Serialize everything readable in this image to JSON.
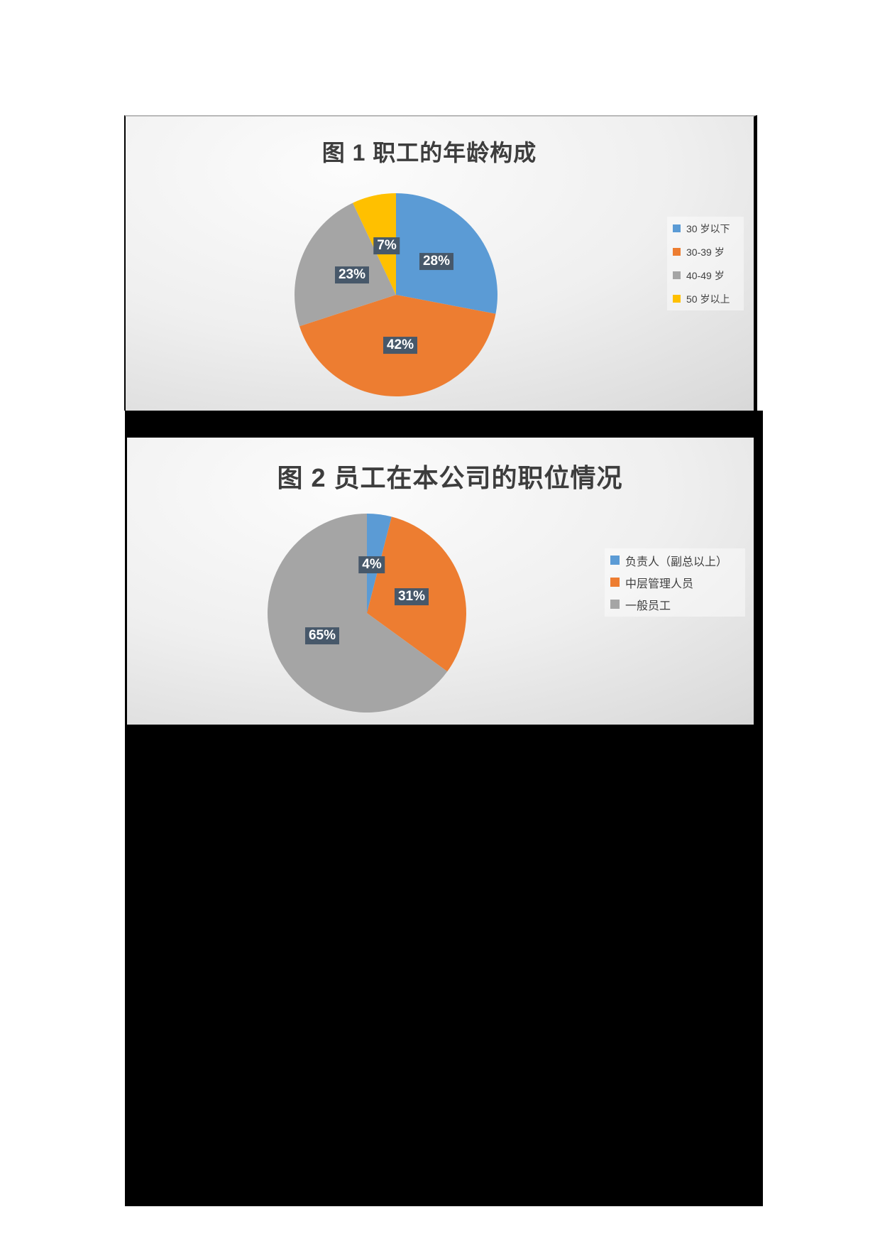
{
  "document": {
    "background": "#ffffff",
    "redaction_color": "#000000"
  },
  "chart_data": [
    {
      "type": "pie",
      "title": "图 1  职工的年龄构成",
      "categories": [
        "30 岁以下",
        "30-39 岁",
        "40-49 岁",
        "50 岁以上"
      ],
      "values": [
        28,
        42,
        23,
        7
      ],
      "labels": [
        "28%",
        "42%",
        "23%",
        "7%"
      ],
      "colors": [
        "#5B9BD5",
        "#ED7D31",
        "#A5A5A5",
        "#FFC000"
      ],
      "legend_position": "right",
      "start_angle_deg": 0,
      "direction": "clockwise",
      "label_style": {
        "background": "#47586a",
        "text": "#ffffff"
      }
    },
    {
      "type": "pie",
      "title": "图 2  员工在本公司的职位情况",
      "categories": [
        "负责人（副总以上）",
        "中层管理人员",
        "一般员工"
      ],
      "values": [
        4,
        31,
        65
      ],
      "labels": [
        "4%",
        "31%",
        "65%"
      ],
      "colors": [
        "#5B9BD5",
        "#ED7D31",
        "#A5A5A5"
      ],
      "legend_position": "right",
      "start_angle_deg": 0,
      "direction": "clockwise",
      "label_style": {
        "background": "#47586a",
        "text": "#ffffff"
      }
    }
  ]
}
